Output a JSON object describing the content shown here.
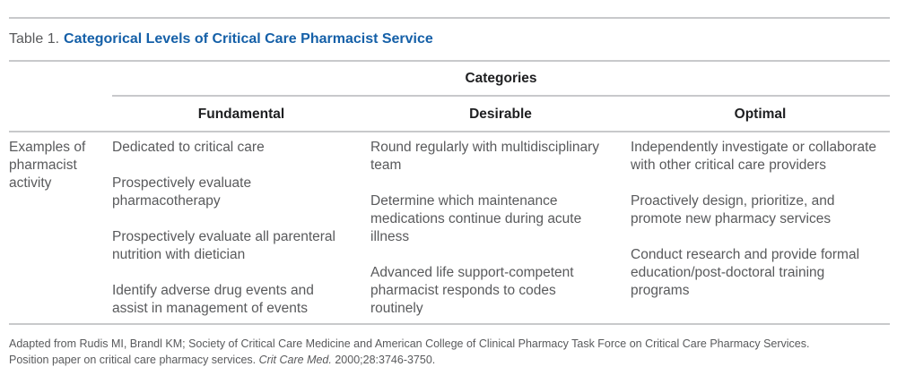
{
  "caption": {
    "label": "Table 1.",
    "title": "Categorical Levels of Critical Care Pharmacist Service"
  },
  "header": {
    "group_label": "Categories",
    "columns": [
      "Fundamental",
      "Desirable",
      "Optimal"
    ]
  },
  "row": {
    "label": "Examples of pharmacist activity",
    "fundamental": [
      "Dedicated to critical care",
      "Prospectively evaluate pharmacotherapy",
      "Prospectively evaluate all parenteral nutrition with dietician",
      "Identify adverse drug events and assist in management of events"
    ],
    "desirable": [
      "Round regularly with multidisciplinary team",
      "Determine which maintenance medications continue during acute illness",
      "Advanced life support-competent pharmacist responds to codes routinely"
    ],
    "optimal": [
      "Independently investigate or collaborate with other critical care providers",
      "Proactively design, prioritize, and promote new pharmacy services",
      "Conduct research and provide formal education/post-doctoral training programs"
    ]
  },
  "footnote": {
    "line1": "Adapted from Rudis MI, Brandl KM; Society of Critical Care Medicine and American College of Clinical Pharmacy Task Force on Critical Care Pharmacy Services.",
    "line2_text": "Position paper on critical care pharmacy services. ",
    "line2_journal": "Crit Care Med.",
    "line2_rest": " 2000;28:3746-3750."
  },
  "colors": {
    "accent_blue": "#1560a8",
    "text_gray": "#595a5c",
    "heading_black": "#1e1f21",
    "rule_gray": "#c8c9cb"
  }
}
